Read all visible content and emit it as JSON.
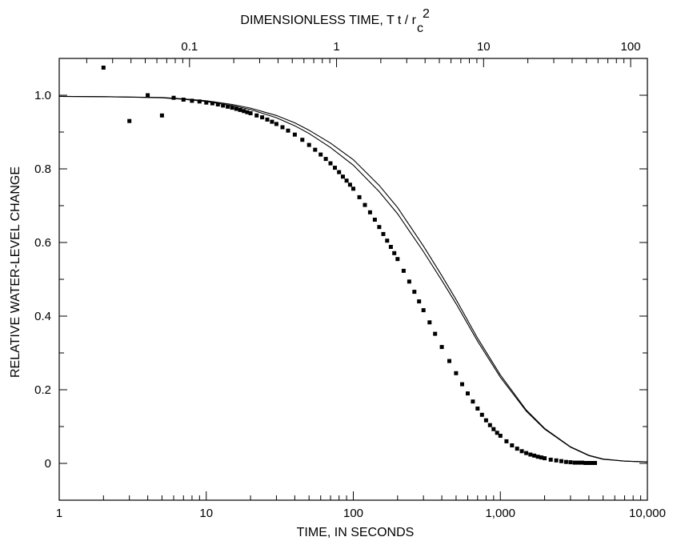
{
  "chart_data": {
    "type": "scatter",
    "x_scale": "log",
    "xlabel": "TIME, IN SECONDS",
    "xlim": [
      1,
      10000
    ],
    "x_ticks": [
      {
        "value": 1,
        "label": "1"
      },
      {
        "value": 10,
        "label": "10"
      },
      {
        "value": 100,
        "label": "100"
      },
      {
        "value": 1000,
        "label": "1,000"
      },
      {
        "value": 10000,
        "label": "10,000"
      }
    ],
    "top_axis": {
      "label": {
        "main": "DIMENSIONLESS TIME, T t / r",
        "subscript": "c",
        "superscript": "2"
      },
      "scale": "log",
      "lim": [
        0.013,
        130
      ],
      "ticks": [
        {
          "value": 0.1,
          "label": "0.1"
        },
        {
          "value": 1,
          "label": "1"
        },
        {
          "value": 10,
          "label": "10"
        },
        {
          "value": 100,
          "label": "100"
        }
      ]
    },
    "ylabel": "RELATIVE WATER-LEVEL CHANGE",
    "ylim": [
      -0.1,
      1.1
    ],
    "y_ticks": [
      {
        "value": 0,
        "label": "0"
      },
      {
        "value": 0.2,
        "label": "0.2"
      },
      {
        "value": 0.4,
        "label": "0.4"
      },
      {
        "value": 0.6,
        "label": "0.6"
      },
      {
        "value": 0.8,
        "label": "0.8"
      },
      {
        "value": 1.0,
        "label": "1.0"
      }
    ],
    "grid": false,
    "series": [
      {
        "mark": "square-points",
        "x": [
          2,
          3,
          4,
          5,
          6,
          7,
          8,
          9,
          10,
          11,
          12,
          13,
          14,
          15,
          16,
          17,
          18,
          19,
          20,
          22,
          24,
          26,
          28,
          30,
          33,
          36,
          40,
          45,
          50,
          55,
          60,
          65,
          70,
          75,
          80,
          85,
          90,
          95,
          100,
          110,
          120,
          130,
          140,
          150,
          160,
          170,
          180,
          190,
          200,
          220,
          240,
          260,
          280,
          300,
          330,
          360,
          400,
          450,
          500,
          550,
          600,
          650,
          700,
          750,
          800,
          850,
          900,
          950,
          1000,
          1100,
          1200,
          1300,
          1400,
          1500,
          1600,
          1700,
          1800,
          1900,
          2000,
          2200,
          2400,
          2600,
          2800,
          3000,
          3200,
          3400,
          3600,
          3800,
          4000,
          4200,
          4400
        ],
        "y": [
          1.075,
          0.93,
          1.0,
          0.945,
          0.993,
          0.988,
          0.985,
          0.983,
          0.98,
          0.978,
          0.975,
          0.972,
          0.969,
          0.966,
          0.963,
          0.96,
          0.957,
          0.954,
          0.951,
          0.945,
          0.94,
          0.934,
          0.928,
          0.922,
          0.913,
          0.904,
          0.893,
          0.879,
          0.865,
          0.852,
          0.839,
          0.827,
          0.815,
          0.803,
          0.791,
          0.779,
          0.768,
          0.757,
          0.746,
          0.723,
          0.702,
          0.682,
          0.662,
          0.642,
          0.623,
          0.605,
          0.588,
          0.571,
          0.555,
          0.523,
          0.494,
          0.466,
          0.44,
          0.416,
          0.383,
          0.352,
          0.316,
          0.278,
          0.245,
          0.215,
          0.19,
          0.168,
          0.149,
          0.132,
          0.117,
          0.104,
          0.093,
          0.083,
          0.075,
          0.06,
          0.049,
          0.04,
          0.033,
          0.028,
          0.024,
          0.021,
          0.018,
          0.016,
          0.014,
          0.01,
          0.008,
          0.006,
          0.004,
          0.003,
          0.002,
          0.002,
          0.002,
          0.001,
          0.001,
          0.001,
          0.001
        ]
      },
      {
        "mark": "line",
        "x": [
          1,
          2,
          3,
          5,
          7,
          10,
          15,
          20,
          30,
          40,
          50,
          70,
          100,
          150,
          200,
          300,
          400,
          500,
          700,
          1000,
          1500,
          2000,
          3000,
          4000,
          5000,
          7000,
          10000
        ],
        "y": [
          0.997,
          0.996,
          0.995,
          0.994,
          0.99,
          0.985,
          0.975,
          0.965,
          0.945,
          0.925,
          0.905,
          0.87,
          0.825,
          0.755,
          0.695,
          0.59,
          0.51,
          0.445,
          0.34,
          0.24,
          0.145,
          0.095,
          0.045,
          0.022,
          0.012,
          0.006,
          0.004
        ]
      },
      {
        "mark": "line",
        "x": [
          1,
          2,
          3,
          5,
          7,
          10,
          15,
          20,
          30,
          40,
          50,
          70,
          100,
          150,
          200,
          300,
          400,
          500,
          700,
          1000,
          1500,
          2000,
          3000,
          4000,
          5000,
          7000,
          10000
        ],
        "y": [
          0.997,
          0.996,
          0.995,
          0.993,
          0.989,
          0.983,
          0.972,
          0.961,
          0.939,
          0.917,
          0.896,
          0.858,
          0.81,
          0.738,
          0.678,
          0.575,
          0.497,
          0.434,
          0.332,
          0.234,
          0.142,
          0.093,
          0.044,
          0.021,
          0.011,
          0.006,
          0.004
        ]
      }
    ]
  }
}
